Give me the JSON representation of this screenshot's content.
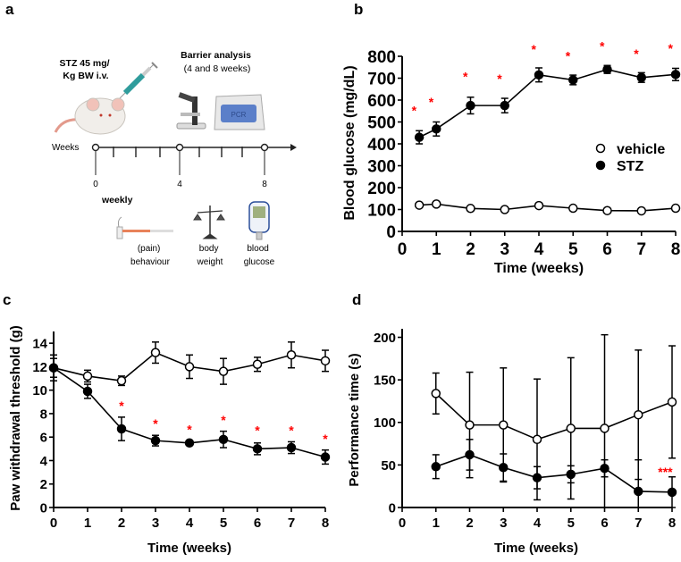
{
  "panel_labels": {
    "a": "a",
    "b": "b",
    "c": "c",
    "d": "d"
  },
  "schematic": {
    "injection": [
      "STZ 45 mg/",
      "Kg BW i.v."
    ],
    "barrier": [
      "Barrier analysis",
      "(4 and 8 weeks)"
    ],
    "pcr_label": "PCR",
    "timeline_label": "Weeks",
    "timeline_ticks": [
      "0",
      "4",
      "8"
    ],
    "weekly_label": "weekly",
    "measures": [
      [
        "(pain)",
        "behaviour"
      ],
      [
        "body",
        "weight"
      ],
      [
        "blood",
        "glucose"
      ]
    ]
  },
  "colors": {
    "line": "#000000",
    "significance": "#ff0000"
  },
  "chart_data": [
    {
      "id": "b",
      "type": "line",
      "title": "",
      "xlabel": "Time (weeks)",
      "ylabel": "Blood glucose (mg/dL)",
      "xlim": [
        0,
        8
      ],
      "ylim": [
        0,
        800
      ],
      "xticks": [
        0,
        1,
        2,
        3,
        4,
        5,
        6,
        7,
        8
      ],
      "yticks": [
        0,
        100,
        200,
        300,
        400,
        500,
        600,
        700,
        800
      ],
      "grid": false,
      "legend": {
        "placement": "center-right",
        "entries": [
          "vehicle",
          "STZ"
        ]
      },
      "series": [
        {
          "name": "vehicle",
          "marker": "open-circle",
          "x": [
            0.5,
            1,
            2,
            3,
            4,
            5,
            6,
            7,
            8
          ],
          "values": [
            120,
            125,
            105,
            100,
            118,
            106,
            95,
            94,
            106
          ],
          "err": [
            6,
            10,
            6,
            5,
            6,
            6,
            5,
            5,
            6
          ]
        },
        {
          "name": "STZ",
          "marker": "filled-circle",
          "x": [
            0.5,
            1,
            2,
            3,
            4,
            5,
            6,
            7,
            8
          ],
          "values": [
            430,
            468,
            575,
            575,
            715,
            692,
            740,
            703,
            717
          ],
          "err": [
            30,
            32,
            38,
            33,
            32,
            22,
            18,
            22,
            28
          ]
        }
      ],
      "annotations": [
        {
          "text": "*",
          "x": 0.35,
          "y": 565
        },
        {
          "text": "*",
          "x": 0.85,
          "y": 605
        },
        {
          "text": "*",
          "x": 1.85,
          "y": 720
        },
        {
          "text": "*",
          "x": 2.85,
          "y": 710
        },
        {
          "text": "*",
          "x": 3.85,
          "y": 845
        },
        {
          "text": "*",
          "x": 4.85,
          "y": 815
        },
        {
          "text": "*",
          "x": 5.85,
          "y": 860
        },
        {
          "text": "*",
          "x": 6.85,
          "y": 825
        },
        {
          "text": "*",
          "x": 7.85,
          "y": 850
        }
      ]
    },
    {
      "id": "c",
      "type": "line",
      "title": "",
      "xlabel": "Time (weeks)",
      "ylabel": "Paw withdrawal threshold (g)",
      "xlim": [
        0,
        8
      ],
      "ylim": [
        0,
        15
      ],
      "xticks": [
        0,
        1,
        2,
        3,
        4,
        5,
        6,
        7,
        8
      ],
      "yticks": [
        0,
        2,
        4,
        6,
        8,
        10,
        12,
        14
      ],
      "grid": false,
      "series": [
        {
          "name": "vehicle",
          "marker": "open-circle",
          "x": [
            0,
            1,
            2,
            3,
            4,
            5,
            6,
            7,
            8
          ],
          "values": [
            11.9,
            11.2,
            10.8,
            13.2,
            12.0,
            11.6,
            12.2,
            13.0,
            12.5
          ],
          "err": [
            1.1,
            0.5,
            0.4,
            0.9,
            1.0,
            1.1,
            0.6,
            1.1,
            0.9
          ]
        },
        {
          "name": "STZ",
          "marker": "filled-circle",
          "x": [
            0,
            1,
            2,
            3,
            4,
            5,
            6,
            7,
            8
          ],
          "values": [
            11.9,
            9.9,
            6.7,
            5.7,
            5.5,
            5.8,
            5.0,
            5.1,
            4.3
          ],
          "err": [
            0.8,
            0.6,
            1.0,
            0.45,
            0.1,
            0.7,
            0.5,
            0.5,
            0.6
          ]
        }
      ],
      "annotations": [
        {
          "text": "*",
          "x": 2,
          "y": 8.9
        },
        {
          "text": "*",
          "x": 3,
          "y": 7.4
        },
        {
          "text": "*",
          "x": 4,
          "y": 6.9
        },
        {
          "text": "*",
          "x": 5,
          "y": 7.7
        },
        {
          "text": "*",
          "x": 6,
          "y": 6.8
        },
        {
          "text": "*",
          "x": 7,
          "y": 6.8
        },
        {
          "text": "*",
          "x": 8,
          "y": 6.1
        }
      ]
    },
    {
      "id": "d",
      "type": "line",
      "title": "",
      "xlabel": "Time (weeks)",
      "ylabel": "Performance time (s)",
      "xlim": [
        0,
        8
      ],
      "ylim": [
        0,
        210
      ],
      "xticks": [
        0,
        1,
        2,
        3,
        4,
        5,
        6,
        7,
        8
      ],
      "yticks": [
        0,
        50,
        100,
        150,
        200
      ],
      "grid": false,
      "series": [
        {
          "name": "vehicle",
          "marker": "open-circle",
          "x": [
            1,
            2,
            3,
            4,
            5,
            6,
            7,
            8
          ],
          "values": [
            134,
            97,
            97,
            80,
            93,
            93,
            109,
            124
          ],
          "err": [
            24,
            62,
            67,
            71,
            83,
            110,
            76,
            66
          ]
        },
        {
          "name": "STZ",
          "marker": "filled-circle",
          "x": [
            1,
            2,
            3,
            4,
            5,
            6,
            7,
            8
          ],
          "values": [
            48,
            62,
            47,
            35,
            39,
            46,
            19,
            18
          ],
          "err": [
            14,
            18,
            16,
            13,
            10,
            10,
            37,
            18
          ]
        }
      ],
      "annotations": [
        {
          "text": "***",
          "x": 7.8,
          "y": 45
        }
      ]
    }
  ]
}
